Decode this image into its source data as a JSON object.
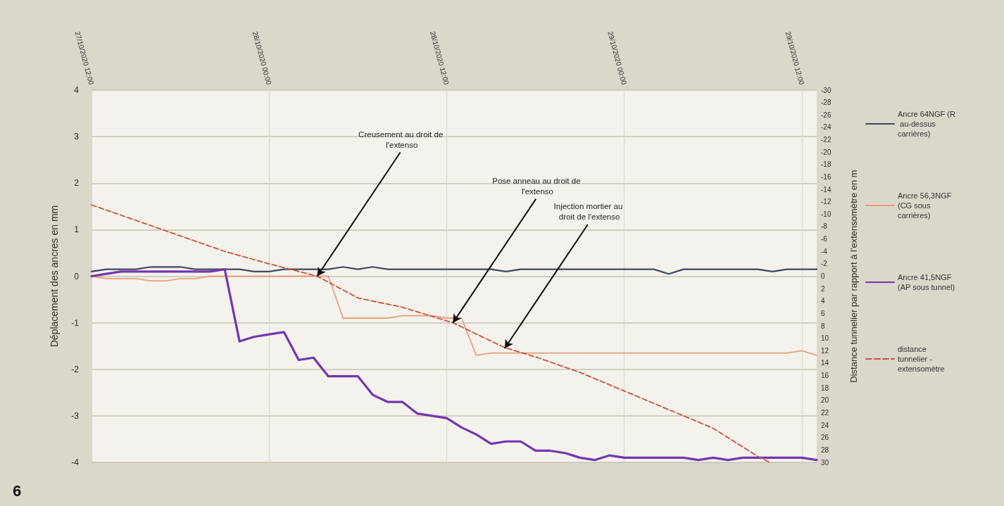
{
  "chart_data": {
    "type": "line",
    "x": [
      "2020-10-27T12:00",
      "2020-10-27T13:00",
      "2020-10-27T14:00",
      "2020-10-27T15:00",
      "2020-10-27T16:00",
      "2020-10-27T17:00",
      "2020-10-27T18:00",
      "2020-10-27T19:00",
      "2020-10-27T20:00",
      "2020-10-27T21:00",
      "2020-10-27T22:00",
      "2020-10-27T23:00",
      "2020-10-28T00:00",
      "2020-10-28T01:00",
      "2020-10-28T02:00",
      "2020-10-28T03:00",
      "2020-10-28T04:00",
      "2020-10-28T05:00",
      "2020-10-28T06:00",
      "2020-10-28T07:00",
      "2020-10-28T08:00",
      "2020-10-28T09:00",
      "2020-10-28T10:00",
      "2020-10-28T11:00",
      "2020-10-28T12:00",
      "2020-10-28T13:00",
      "2020-10-28T14:00",
      "2020-10-28T15:00",
      "2020-10-28T16:00",
      "2020-10-28T17:00",
      "2020-10-28T18:00",
      "2020-10-28T19:00",
      "2020-10-28T20:00",
      "2020-10-28T21:00",
      "2020-10-28T22:00",
      "2020-10-28T23:00",
      "2020-10-29T00:00",
      "2020-10-29T01:00",
      "2020-10-29T02:00",
      "2020-10-29T03:00",
      "2020-10-29T04:00",
      "2020-10-29T05:00",
      "2020-10-29T06:00",
      "2020-10-29T07:00",
      "2020-10-29T08:00",
      "2020-10-29T09:00",
      "2020-10-29T10:00",
      "2020-10-29T11:00",
      "2020-10-29T12:00",
      "2020-10-29T13:00"
    ],
    "xlim": [
      "2020-10-27T12:00",
      "2020-10-29T13:00"
    ],
    "xticks": [
      {
        "value": "2020-10-27T12:00",
        "label": "27/10/2020 12:00"
      },
      {
        "value": "2020-10-28T00:00",
        "label": "28/10/2020 00:00"
      },
      {
        "value": "2020-10-28T12:00",
        "label": "28/10/2020 12:00"
      },
      {
        "value": "2020-10-29T00:00",
        "label": "29/10/2020 00:00"
      },
      {
        "value": "2020-10-29T12:00",
        "label": "29/10/2020 12:00"
      }
    ],
    "ylabel": "Déplacement des ancres en mm",
    "y2label": "Distance tunnelier par rapport à l'extensomètre en m",
    "ylim": [
      -4,
      4
    ],
    "yticks": [
      -4,
      -3,
      -2,
      -1,
      0,
      1,
      2,
      3,
      4
    ],
    "y2lim": [
      30,
      -30
    ],
    "y2ticks": [
      -30,
      -28,
      -26,
      -24,
      -22,
      -20,
      -18,
      -16,
      -14,
      -12,
      -10,
      -8,
      -6,
      -4,
      -2,
      0,
      2,
      4,
      6,
      8,
      10,
      12,
      14,
      16,
      18,
      20,
      22,
      24,
      26,
      28,
      30
    ],
    "series": [
      {
        "name": "Ancre 64NGF (R au-dessus carrières)",
        "color": "#3d4862",
        "values": [
          0.1,
          0.15,
          0.15,
          0.15,
          0.2,
          0.2,
          0.2,
          0.15,
          0.15,
          0.15,
          0.15,
          0.1,
          0.1,
          0.15,
          0.15,
          0.15,
          0.15,
          0.2,
          0.15,
          0.2,
          0.15,
          0.15,
          0.15,
          0.15,
          0.15,
          0.15,
          0.15,
          0.15,
          0.1,
          0.15,
          0.15,
          0.15,
          0.15,
          0.15,
          0.15,
          0.15,
          0.15,
          0.15,
          0.15,
          0.05,
          0.15,
          0.15,
          0.15,
          0.15,
          0.15,
          0.15,
          0.1,
          0.15,
          0.15,
          0.15
        ]
      },
      {
        "name": "Ancre 56,3NGF (CG sous carrières)",
        "color": "#e6a07c",
        "values": [
          0,
          -0.05,
          -0.05,
          -0.05,
          -0.1,
          -0.1,
          -0.05,
          -0.05,
          0,
          0,
          0,
          0,
          0,
          0,
          0,
          0,
          0,
          -0.9,
          -0.9,
          -0.9,
          -0.9,
          -0.85,
          -0.85,
          -0.85,
          -0.9,
          -0.9,
          -1.7,
          -1.65,
          -1.65,
          -1.65,
          -1.65,
          -1.65,
          -1.65,
          -1.65,
          -1.65,
          -1.65,
          -1.65,
          -1.65,
          -1.65,
          -1.65,
          -1.65,
          -1.65,
          -1.65,
          -1.65,
          -1.65,
          -1.65,
          -1.65,
          -1.65,
          -1.6,
          -1.7
        ]
      },
      {
        "name": "Ancre 41,5NGF (AP sous tunnel)",
        "color": "#7436b0",
        "values": [
          0,
          0.05,
          0.1,
          0.1,
          0.1,
          0.1,
          0.1,
          0.1,
          0.1,
          0.15,
          -1.4,
          -1.3,
          -1.25,
          -1.2,
          -1.8,
          -1.75,
          -2.15,
          -2.15,
          -2.15,
          -2.55,
          -2.7,
          -2.7,
          -2.95,
          -3,
          -3.05,
          -3.25,
          -3.4,
          -3.6,
          -3.55,
          -3.55,
          -3.75,
          -3.75,
          -3.8,
          -3.9,
          -3.95,
          -3.85,
          -3.9,
          -3.9,
          -3.9,
          -3.9,
          -3.9,
          -3.95,
          -3.9,
          -3.95,
          -3.9,
          -3.9,
          -3.9,
          -3.9,
          -3.9,
          -3.95
        ]
      },
      {
        "name": "distance tunnelier - extensomètre",
        "color": "#c8553d",
        "axis": "y2",
        "line_style": "dashed",
        "x": [
          "2020-10-27T12:00",
          "2020-10-27T15:00",
          "2020-10-27T18:00",
          "2020-10-27T21:00",
          "2020-10-28T00:00",
          "2020-10-28T03:15",
          "2020-10-28T06:00",
          "2020-10-28T09:00",
          "2020-10-28T12:25",
          "2020-10-28T15:55",
          "2020-10-28T18:00",
          "2020-10-28T21:00",
          "2020-10-29T00:00",
          "2020-10-29T03:00",
          "2020-10-29T06:00",
          "2020-10-29T09:00",
          "2020-10-29T09:50"
        ],
        "values": [
          -11.5,
          -9,
          -6.5,
          -4,
          -2,
          0,
          3.5,
          5,
          7.5,
          11.5,
          13,
          15.5,
          18.5,
          21.5,
          24.5,
          29,
          30
        ]
      }
    ],
    "annotations": [
      {
        "text": "Creusement au droit de l'extenso",
        "x": "2020-10-28T03:15",
        "y": 0
      },
      {
        "text": "Pose anneau au droit de l'extenso",
        "x": "2020-10-28T12:25",
        "y": -1
      },
      {
        "text": "Injection mortier au droit de l'extenso",
        "x": "2020-10-28T15:55",
        "y": -1.55
      },
      "6"
    ],
    "grid": true,
    "legend": "right",
    "marker": "none",
    "line_style": "solid"
  }
}
